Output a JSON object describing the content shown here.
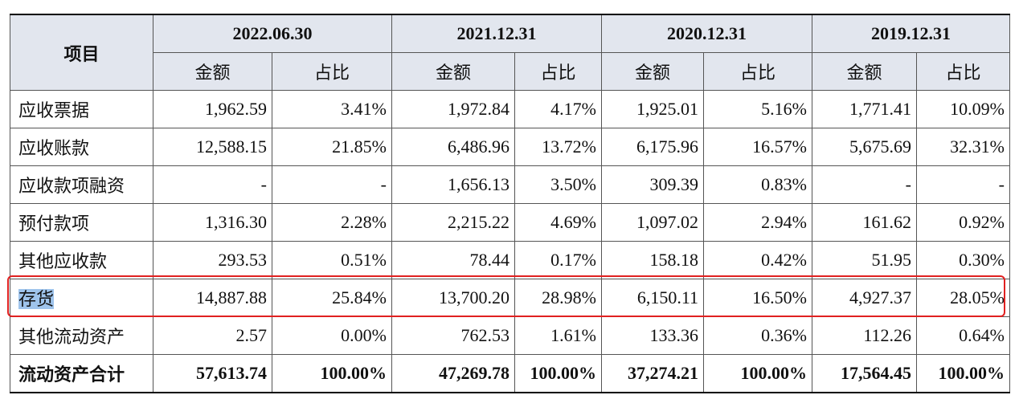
{
  "header": {
    "item": "项目",
    "periods": [
      "2022.06.30",
      "2021.12.31",
      "2020.12.31",
      "2019.12.31"
    ],
    "subheaders": [
      "金额",
      "占比"
    ]
  },
  "table": {
    "rows": [
      [
        "应收票据",
        "1,962.59",
        "3.41%",
        "1,972.84",
        "4.17%",
        "1,925.01",
        "5.16%",
        "1,771.41",
        "10.09%"
      ],
      [
        "应收账款",
        "12,588.15",
        "21.85%",
        "6,486.96",
        "13.72%",
        "6,175.96",
        "16.57%",
        "5,675.69",
        "32.31%"
      ],
      [
        "应收款项融资",
        "-",
        "-",
        "1,656.13",
        "3.50%",
        "309.39",
        "0.83%",
        "-",
        "-"
      ],
      [
        "预付款项",
        "1,316.30",
        "2.28%",
        "2,215.22",
        "4.69%",
        "1,097.02",
        "2.94%",
        "161.62",
        "0.92%"
      ],
      [
        "其他应收款",
        "293.53",
        "0.51%",
        "78.44",
        "0.17%",
        "158.18",
        "0.42%",
        "51.95",
        "0.30%"
      ],
      [
        "存货",
        "14,887.88",
        "25.84%",
        "13,700.20",
        "28.98%",
        "6,150.11",
        "16.50%",
        "4,927.37",
        "28.05%"
      ],
      [
        "其他流动资产",
        "2.57",
        "0.00%",
        "762.53",
        "1.61%",
        "133.36",
        "0.36%",
        "112.26",
        "0.64%"
      ],
      [
        "流动资产合计",
        "57,613.74",
        "100.00%",
        "47,269.78",
        "100.00%",
        "37,274.21",
        "100.00%",
        "17,564.45",
        "100.00%"
      ]
    ]
  }
}
